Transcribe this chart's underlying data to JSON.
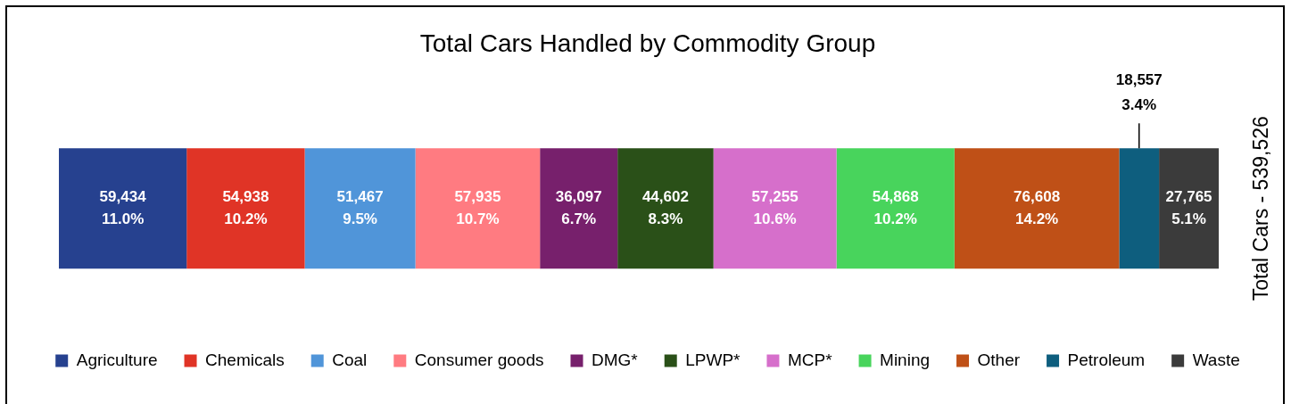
{
  "chart_data": {
    "type": "bar",
    "title": "Total Cars Handled by Commodity Group",
    "ylabel": "Total Cars - 539,526",
    "orientation": "horizontal",
    "stacked": true,
    "categories": [
      null
    ],
    "xlim": [
      0,
      539526
    ],
    "tick_labels": false,
    "legend": "bottom",
    "series": [
      {
        "name": "Agriculture",
        "color": "#26418f",
        "values": [
          59434
        ],
        "value_labels": [
          "59,434\n11.0%"
        ]
      },
      {
        "name": "Chemicals",
        "color": "#e03426",
        "values": [
          54938
        ],
        "value_labels": [
          "54,938\n10.2%"
        ]
      },
      {
        "name": "Coal",
        "color": "#5095d9",
        "values": [
          51467
        ],
        "value_labels": [
          "51,467\n9.5%"
        ]
      },
      {
        "name": "Consumer goods",
        "color": "#ff7b81",
        "values": [
          57935
        ],
        "value_labels": [
          "57,935\n10.7%"
        ]
      },
      {
        "name": "DMG*",
        "color": "#77206c",
        "values": [
          36097
        ],
        "value_labels": [
          "36,097\n6.7%"
        ]
      },
      {
        "name": "LPWP*",
        "color": "#2a5018",
        "values": [
          44602
        ],
        "value_labels": [
          "44,602\n8.3%"
        ]
      },
      {
        "name": "MCP*",
        "color": "#d66fcb",
        "values": [
          57255
        ],
        "value_labels": [
          "57,255\n10.6%"
        ]
      },
      {
        "name": "Mining",
        "color": "#48d45c",
        "values": [
          54868
        ],
        "value_labels": [
          "54,868\n10.2%"
        ]
      },
      {
        "name": "Other",
        "color": "#bf5017",
        "values": [
          76608
        ],
        "value_labels": [
          "76,608\n14.2%"
        ]
      },
      {
        "name": "Petroleum",
        "color": "#0e5e7e",
        "values": [
          18557
        ],
        "value_labels": [
          "18,557\n3.4%"
        ]
      },
      {
        "name": "Waste",
        "color": "#3b3b3b",
        "values": [
          27765
        ],
        "value_labels": [
          "27,765\n5.1%"
        ]
      }
    ]
  }
}
